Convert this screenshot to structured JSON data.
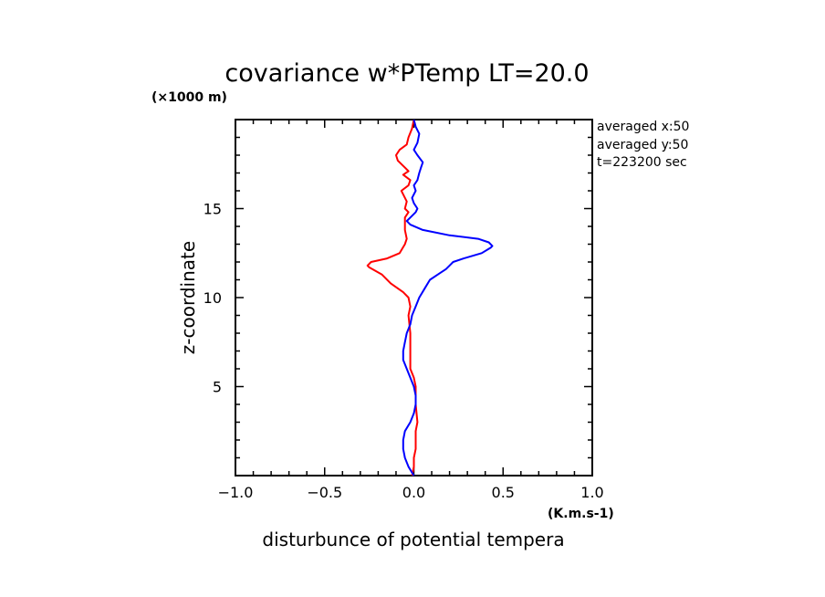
{
  "chart_data": {
    "type": "line",
    "title": "covariance w*PTemp LT=20.0",
    "xlabel": "disturbunce of potential tempera",
    "ylabel": "z-coordinate",
    "x_unit": "(K.m.s-1)",
    "y_unit": "(×1000 m)",
    "xlim": [
      -1.0,
      1.0
    ],
    "ylim": [
      0.0,
      20.0
    ],
    "x_ticks": [
      "-1.0",
      "-0.5",
      "0.0",
      "0.5",
      "1.0"
    ],
    "y_ticks": [
      "5",
      "10",
      "15"
    ],
    "x_tick_values": [
      -1.0,
      -0.5,
      0.0,
      0.5,
      1.0
    ],
    "y_tick_values": [
      5,
      10,
      15
    ],
    "annotations": [
      "averaged  x:50",
      "averaged  y:50",
      "t=223200 sec"
    ],
    "series": [
      {
        "color": "#ff0000",
        "points": [
          [
            -0.01,
            0.0
          ],
          [
            0.0,
            0.5
          ],
          [
            0.0,
            1.0
          ],
          [
            0.01,
            1.5
          ],
          [
            0.01,
            2.5
          ],
          [
            0.02,
            3.0
          ],
          [
            0.01,
            4.0
          ],
          [
            0.01,
            5.0
          ],
          [
            0.0,
            5.5
          ],
          [
            -0.02,
            6.0
          ],
          [
            -0.02,
            7.0
          ],
          [
            -0.02,
            8.0
          ],
          [
            -0.03,
            9.0
          ],
          [
            -0.02,
            9.5
          ],
          [
            -0.03,
            10.0
          ],
          [
            -0.06,
            10.3
          ],
          [
            -0.13,
            10.8
          ],
          [
            -0.18,
            11.3
          ],
          [
            -0.25,
            11.7
          ],
          [
            -0.26,
            11.8
          ],
          [
            -0.24,
            12.0
          ],
          [
            -0.15,
            12.2
          ],
          [
            -0.08,
            12.5
          ],
          [
            -0.05,
            13.0
          ],
          [
            -0.04,
            13.3
          ],
          [
            -0.05,
            13.8
          ],
          [
            -0.05,
            14.0
          ],
          [
            -0.05,
            14.5
          ],
          [
            -0.03,
            14.8
          ],
          [
            -0.05,
            15.0
          ],
          [
            -0.04,
            15.4
          ],
          [
            -0.06,
            15.8
          ],
          [
            -0.07,
            16.0
          ],
          [
            -0.03,
            16.3
          ],
          [
            -0.02,
            16.6
          ],
          [
            -0.06,
            16.9
          ],
          [
            -0.03,
            17.1
          ],
          [
            -0.05,
            17.3
          ],
          [
            -0.09,
            17.7
          ],
          [
            -0.1,
            18.0
          ],
          [
            -0.08,
            18.3
          ],
          [
            -0.04,
            18.6
          ],
          [
            -0.03,
            19.0
          ],
          [
            -0.01,
            19.5
          ],
          [
            0.0,
            20.0
          ]
        ]
      },
      {
        "color": "#0000ff",
        "points": [
          [
            0.0,
            0.0
          ],
          [
            -0.03,
            0.5
          ],
          [
            -0.05,
            1.0
          ],
          [
            -0.06,
            1.5
          ],
          [
            -0.06,
            2.0
          ],
          [
            -0.05,
            2.5
          ],
          [
            -0.02,
            3.0
          ],
          [
            0.0,
            3.5
          ],
          [
            0.01,
            4.0
          ],
          [
            0.01,
            4.5
          ],
          [
            0.0,
            5.0
          ],
          [
            -0.02,
            5.5
          ],
          [
            -0.04,
            6.0
          ],
          [
            -0.06,
            6.5
          ],
          [
            -0.06,
            7.0
          ],
          [
            -0.05,
            7.5
          ],
          [
            -0.04,
            8.0
          ],
          [
            -0.02,
            8.5
          ],
          [
            -0.01,
            9.0
          ],
          [
            0.01,
            9.5
          ],
          [
            0.03,
            10.0
          ],
          [
            0.06,
            10.5
          ],
          [
            0.09,
            11.0
          ],
          [
            0.15,
            11.4
          ],
          [
            0.18,
            11.6
          ],
          [
            0.2,
            11.8
          ],
          [
            0.22,
            12.0
          ],
          [
            0.28,
            12.2
          ],
          [
            0.38,
            12.5
          ],
          [
            0.43,
            12.8
          ],
          [
            0.44,
            12.9
          ],
          [
            0.42,
            13.1
          ],
          [
            0.36,
            13.3
          ],
          [
            0.2,
            13.5
          ],
          [
            0.05,
            13.8
          ],
          [
            -0.02,
            14.1
          ],
          [
            -0.04,
            14.3
          ],
          [
            -0.02,
            14.5
          ],
          [
            0.01,
            14.8
          ],
          [
            0.02,
            15.0
          ],
          [
            0.0,
            15.3
          ],
          [
            -0.01,
            15.6
          ],
          [
            0.01,
            16.0
          ],
          [
            0.0,
            16.3
          ],
          [
            0.02,
            16.6
          ],
          [
            0.03,
            17.0
          ],
          [
            0.04,
            17.3
          ],
          [
            0.05,
            17.6
          ],
          [
            0.02,
            18.0
          ],
          [
            0.0,
            18.3
          ],
          [
            0.02,
            18.7
          ],
          [
            0.03,
            19.2
          ],
          [
            0.01,
            19.6
          ],
          [
            0.0,
            20.0
          ]
        ]
      }
    ]
  }
}
